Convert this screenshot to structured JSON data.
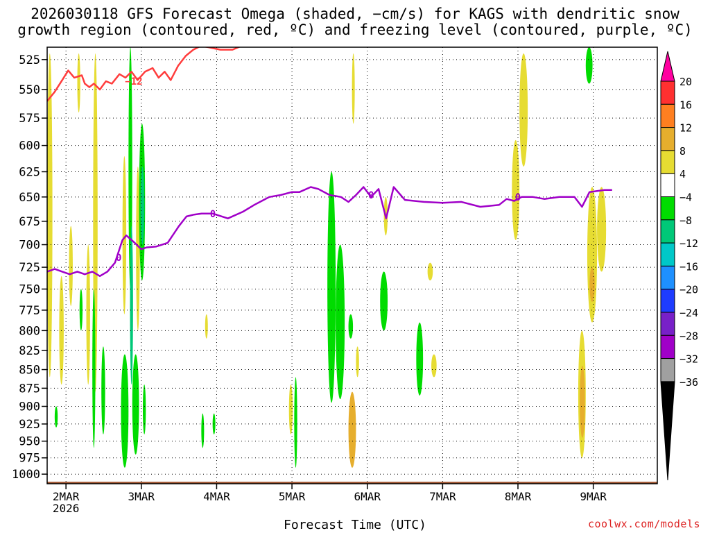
{
  "title_line1": "2026030118 GFS Forecast Omega (shaded, −cm/s) for KAGS with dendritic snow",
  "title_line2": "growth region (contoured, red, ºC) and freezing level (contoured, purple, ºC)",
  "credit": "coolwx.com/models",
  "chart_data": {
    "type": "heatmap",
    "title": "2026030118 GFS Forecast Omega (shaded, −cm/s) for KAGS with dendritic snow growth region (contoured, red, ºC) and freezing level (contoured, purple, ºC)",
    "xlabel": "Forecast Time (UTC)",
    "ylabel": "",
    "x_unit": "days since 2026-03-01 18Z",
    "xlim": [
      0,
      8.1
    ],
    "x_ticks": [
      {
        "x": 0.25,
        "label": "2MAR"
      },
      {
        "x": 1.25,
        "label": "3MAR"
      },
      {
        "x": 2.25,
        "label": "4MAR"
      },
      {
        "x": 3.25,
        "label": "5MAR"
      },
      {
        "x": 4.25,
        "label": "6MAR"
      },
      {
        "x": 5.25,
        "label": "7MAR"
      },
      {
        "x": 6.25,
        "label": "8MAR"
      },
      {
        "x": 7.25,
        "label": "9MAR"
      }
    ],
    "x_sublabel": "2026",
    "y_ticks": [
      525,
      550,
      575,
      600,
      625,
      650,
      675,
      700,
      725,
      750,
      775,
      800,
      825,
      850,
      875,
      900,
      925,
      950,
      975,
      1000
    ],
    "ylim": [
      1015,
      515
    ],
    "y_scale": "log",
    "grid": true,
    "colorbar": {
      "labels": [
        "20",
        "16",
        "12",
        "8",
        "4",
        "−4",
        "−8",
        "−12",
        "−16",
        "−20",
        "−24",
        "−28",
        "−32",
        "−36"
      ],
      "colors": [
        "#ff00a0",
        "#ff3030",
        "#ff7f20",
        "#e6ae2d",
        "#e6dc32",
        "#ffffff",
        "#00dc00",
        "#00c878",
        "#00c8c8",
        "#1e90ff",
        "#1e3cff",
        "#7820c8",
        "#a000c8",
        "#a0a0a0",
        "#000000"
      ]
    },
    "omega_cells": [
      {
        "x": [
          0.0,
          0.07
        ],
        "p": [
          520,
          860
        ],
        "level": 4
      },
      {
        "x": [
          0.16,
          0.22
        ],
        "p": [
          735,
          870
        ],
        "level": 4
      },
      {
        "x": [
          0.29,
          0.34
        ],
        "p": [
          680,
          770
        ],
        "level": 4
      },
      {
        "x": [
          0.4,
          0.44
        ],
        "p": [
          520,
          570
        ],
        "level": 4
      },
      {
        "x": [
          0.52,
          0.57
        ],
        "p": [
          700,
          870
        ],
        "level": 4
      },
      {
        "x": [
          0.61,
          0.67
        ],
        "p": [
          520,
          880
        ],
        "level": 4
      },
      {
        "x": [
          1.0,
          1.05
        ],
        "p": [
          610,
          780
        ],
        "level": 4
      },
      {
        "x": [
          1.18,
          1.23
        ],
        "p": [
          620,
          800
        ],
        "level": 4
      },
      {
        "x": [
          2.1,
          2.13
        ],
        "p": [
          780,
          810
        ],
        "level": 4
      },
      {
        "x": [
          3.21,
          3.26
        ],
        "p": [
          870,
          940
        ],
        "level": 4
      },
      {
        "x": [
          4.05,
          4.08
        ],
        "p": [
          520,
          580
        ],
        "level": 4
      },
      {
        "x": [
          4.1,
          4.14
        ],
        "p": [
          820,
          860
        ],
        "level": 4
      },
      {
        "x": [
          4.47,
          4.52
        ],
        "p": [
          650,
          690
        ],
        "level": 4
      },
      {
        "x": [
          5.05,
          5.12
        ],
        "p": [
          720,
          740
        ],
        "level": 4
      },
      {
        "x": [
          5.1,
          5.17
        ],
        "p": [
          830,
          860
        ],
        "level": 4
      },
      {
        "x": [
          6.17,
          6.27
        ],
        "p": [
          595,
          695
        ],
        "level": 4
      },
      {
        "x": [
          6.27,
          6.38
        ],
        "p": [
          520,
          620
        ],
        "level": 4
      },
      {
        "x": [
          7.05,
          7.15
        ],
        "p": [
          800,
          975
        ],
        "level": 4
      },
      {
        "x": [
          7.17,
          7.3
        ],
        "p": [
          640,
          790
        ],
        "level": 4
      },
      {
        "x": [
          7.3,
          7.42
        ],
        "p": [
          640,
          730
        ],
        "level": 4
      },
      {
        "x": [
          4.0,
          4.1
        ],
        "p": [
          880,
          990
        ],
        "level": 8
      },
      {
        "x": [
          7.2,
          7.27
        ],
        "p": [
          725,
          765
        ],
        "level": 8
      },
      {
        "x": [
          7.07,
          7.14
        ],
        "p": [
          845,
          945
        ],
        "level": 8
      },
      {
        "x": [
          0.1,
          0.14
        ],
        "p": [
          900,
          930
        ],
        "level": -4
      },
      {
        "x": [
          0.43,
          0.47
        ],
        "p": [
          750,
          800
        ],
        "level": -4
      },
      {
        "x": [
          0.6,
          0.64
        ],
        "p": [
          750,
          960
        ],
        "level": -4
      },
      {
        "x": [
          0.72,
          0.77
        ],
        "p": [
          820,
          940
        ],
        "level": -4
      },
      {
        "x": [
          0.98,
          1.08
        ],
        "p": [
          830,
          990
        ],
        "level": -4
      },
      {
        "x": [
          1.08,
          1.13
        ],
        "p": [
          515,
          750
        ],
        "level": -4
      },
      {
        "x": [
          1.13,
          1.22
        ],
        "p": [
          830,
          970
        ],
        "level": -4
      },
      {
        "x": [
          1.22,
          1.3
        ],
        "p": [
          580,
          740
        ],
        "level": -4
      },
      {
        "x": [
          1.27,
          1.31
        ],
        "p": [
          870,
          940
        ],
        "level": -4
      },
      {
        "x": [
          2.05,
          2.08
        ],
        "p": [
          910,
          960
        ],
        "level": -4
      },
      {
        "x": [
          2.2,
          2.23
        ],
        "p": [
          910,
          940
        ],
        "level": -4
      },
      {
        "x": [
          3.28,
          3.32
        ],
        "p": [
          860,
          990
        ],
        "level": -4
      },
      {
        "x": [
          3.72,
          3.83
        ],
        "p": [
          625,
          895
        ],
        "level": -4
      },
      {
        "x": [
          3.83,
          3.95
        ],
        "p": [
          700,
          890
        ],
        "level": -4
      },
      {
        "x": [
          4.0,
          4.06
        ],
        "p": [
          780,
          810
        ],
        "level": -4
      },
      {
        "x": [
          4.42,
          4.52
        ],
        "p": [
          730,
          800
        ],
        "level": -4
      },
      {
        "x": [
          4.9,
          4.99
        ],
        "p": [
          790,
          885
        ],
        "level": -4
      },
      {
        "x": [
          7.15,
          7.24
        ],
        "p": [
          515,
          545
        ],
        "level": -4
      },
      {
        "x": [
          1.1,
          1.14
        ],
        "p": [
          680,
          870
        ],
        "level": -8
      },
      {
        "x": [
          1.24,
          1.29
        ],
        "p": [
          620,
          700
        ],
        "level": -8
      }
    ],
    "series": [
      {
        "name": "dendritic snow growth region (−12 ºC)",
        "color": "#ff3c3c",
        "contour_label": "−12",
        "x": [
          0.0,
          0.1,
          0.2,
          0.28,
          0.36,
          0.46,
          0.5,
          0.56,
          0.62,
          0.7,
          0.78,
          0.86,
          0.96,
          1.04,
          1.12,
          1.2,
          1.3,
          1.4,
          1.48,
          1.56,
          1.64,
          1.74,
          1.84,
          1.94,
          2.04,
          2.14,
          2.3,
          2.46,
          2.62
        ],
        "p": [
          560,
          552,
          542,
          534,
          540,
          538,
          545,
          548,
          545,
          550,
          543,
          545,
          537,
          540,
          535,
          542,
          535,
          532,
          540,
          535,
          542,
          530,
          522,
          517,
          514,
          515,
          517,
          517,
          513
        ]
      },
      {
        "name": "freezing level (0 ºC)",
        "color": "#a000c8",
        "contour_label": "0",
        "x": [
          0.0,
          0.1,
          0.2,
          0.3,
          0.4,
          0.5,
          0.6,
          0.7,
          0.8,
          0.9,
          1.0,
          1.05,
          1.15,
          1.25,
          1.32,
          1.45,
          1.6,
          1.75,
          1.85,
          1.95,
          2.05,
          2.2,
          2.4,
          2.6,
          2.75,
          2.95,
          3.1,
          3.25,
          3.35,
          3.5,
          3.6,
          3.75,
          3.9,
          4.0,
          4.1,
          4.2,
          4.3,
          4.4,
          4.5,
          4.6,
          4.75,
          5.0,
          5.25,
          5.5,
          5.75,
          6.0,
          6.1,
          6.2,
          6.3,
          6.45,
          6.6,
          6.8,
          7.0,
          7.1,
          7.2,
          7.4,
          7.5
        ],
        "p": [
          730,
          727,
          730,
          733,
          730,
          733,
          730,
          735,
          730,
          720,
          695,
          690,
          697,
          705,
          703,
          702,
          698,
          680,
          670,
          668,
          667,
          667,
          672,
          665,
          658,
          650,
          648,
          645,
          645,
          640,
          642,
          648,
          650,
          655,
          648,
          640,
          650,
          642,
          672,
          640,
          653,
          655,
          656,
          655,
          660,
          658,
          652,
          654,
          650,
          650,
          652,
          650,
          650,
          660,
          645,
          643,
          643
        ]
      }
    ]
  }
}
